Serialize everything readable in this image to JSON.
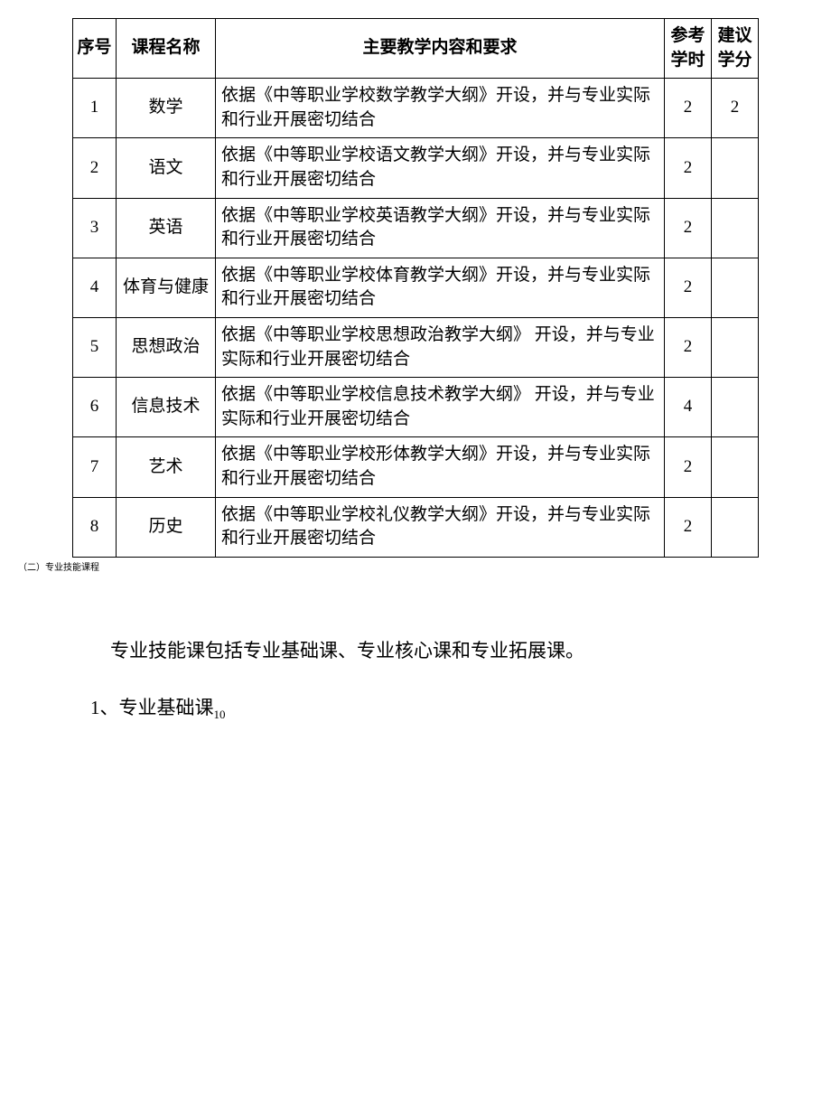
{
  "table": {
    "headers": {
      "index": "序号",
      "name": "课程名称",
      "content": "主要教学内容和要求",
      "hours": "参考学时",
      "credits": "建议学分"
    },
    "rows": [
      {
        "index": "1",
        "name": "数学",
        "content": "依据《中等职业学校数学教学大纲》开设，并与专业实际和行业开展密切结合",
        "hours": "2",
        "credits": "2"
      },
      {
        "index": "2",
        "name": "语文",
        "content": "依据《中等职业学校语文教学大纲》开设，并与专业实际和行业开展密切结合",
        "hours": "2",
        "credits": ""
      },
      {
        "index": "3",
        "name": "英语",
        "content": "依据《中等职业学校英语教学大纲》开设，并与专业实际和行业开展密切结合",
        "hours": "2",
        "credits": ""
      },
      {
        "index": "4",
        "name": "体育与健康",
        "content": "依据《中等职业学校体育教学大纲》开设，并与专业实际和行业开展密切结合",
        "hours": "2",
        "credits": ""
      },
      {
        "index": "5",
        "name": "思想政治",
        "content": "依据《中等职业学校思想政治教学大纲》 开设，并与专业实际和行业开展密切结合",
        "hours": "2",
        "credits": ""
      },
      {
        "index": "6",
        "name": "信息技术",
        "content": "依据《中等职业学校信息技术教学大纲》 开设，并与专业实际和行业开展密切结合",
        "hours": "4",
        "credits": ""
      },
      {
        "index": "7",
        "name": "艺术",
        "content": "依据《中等职业学校形体教学大纲》开设，并与专业实际和行业开展密切结合",
        "hours": "2",
        "credits": ""
      },
      {
        "index": "8",
        "name": "历史",
        "content": "依据《中等职业学校礼仪教学大纲》开设，并与专业实际和行业开展密切结合",
        "hours": "2",
        "credits": ""
      }
    ]
  },
  "footnote": "（二）专业技能课程",
  "bodyText": "专业技能课包括专业基础课、专业核心课和专业拓展课。",
  "subHeading": {
    "prefix": "1、专业基础课",
    "sub": "10"
  },
  "styles": {
    "text_color": "#000000",
    "border_color": "#000000",
    "background_color": "#ffffff",
    "table_font_size": 19,
    "body_font_size": 21,
    "footnote_font_size": 10,
    "col_widths": {
      "index": 48,
      "name": 110,
      "hours": 52,
      "credits": 52
    }
  }
}
